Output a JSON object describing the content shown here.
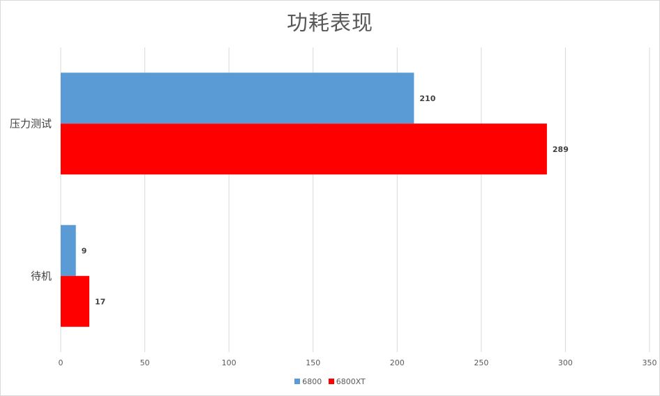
{
  "chart_data": {
    "type": "bar",
    "orientation": "horizontal",
    "title": "功耗表现",
    "categories": [
      "压力测试",
      "待机"
    ],
    "series": [
      {
        "name": "6800",
        "values": [
          210,
          9
        ],
        "color": "#5b9bd5"
      },
      {
        "name": "6800XT",
        "values": [
          289,
          17
        ],
        "color": "#ff0000"
      }
    ],
    "xlim": [
      0,
      350
    ],
    "xticks": [
      0,
      50,
      100,
      150,
      200,
      250,
      300,
      350
    ],
    "grid": true,
    "legend": "bottom",
    "data_labels": true
  }
}
